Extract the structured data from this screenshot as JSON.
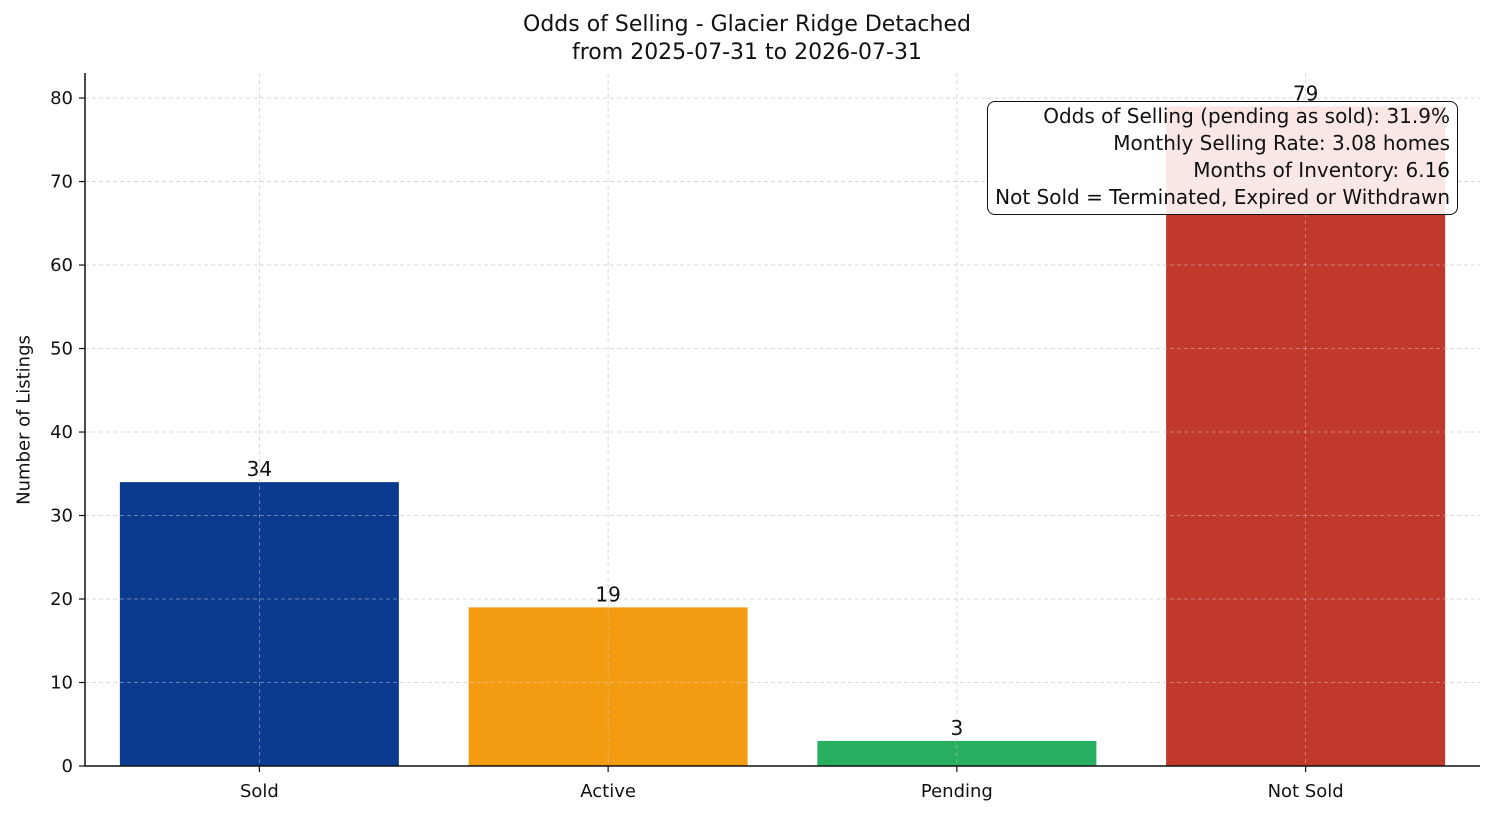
{
  "chart_data": {
    "type": "bar",
    "title": "Odds of Selling - Glacier Ridge Detached",
    "subtitle": "from 2025-07-31 to 2026-07-31",
    "xlabel": "",
    "ylabel": "Number of Listings",
    "categories": [
      "Sold",
      "Active",
      "Pending",
      "Not Sold"
    ],
    "values": [
      34,
      19,
      3,
      79
    ],
    "colors": [
      "#0b3b8f",
      "#f39c12",
      "#27ae60",
      "#c0392b"
    ],
    "data_labels": [
      "34",
      "19",
      "3",
      "79"
    ],
    "ylim": [
      0,
      83
    ],
    "yticks": [
      0,
      10,
      20,
      30,
      40,
      50,
      60,
      70,
      80
    ],
    "grid": true,
    "legend": "none"
  },
  "annotation": {
    "lines": [
      "Odds of Selling (pending as sold): 31.9%",
      "Monthly Selling Rate: 3.08 homes",
      "Months of Inventory: 6.16",
      "Not Sold = Terminated, Expired or Withdrawn"
    ]
  }
}
